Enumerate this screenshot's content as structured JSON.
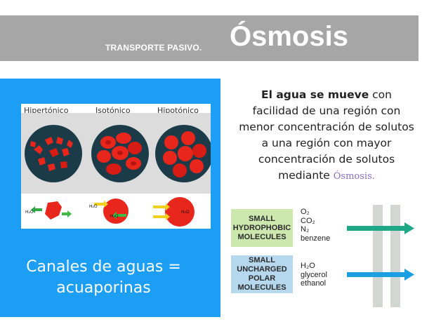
{
  "header": {
    "subtitle": "TRANSPORTE PASIVO.",
    "title": "Ósmosis"
  },
  "cells": {
    "labels": [
      "Hipertónico",
      "Isotónico",
      "Hipotónico"
    ],
    "h2o_label": "H₂O"
  },
  "aquaporins": {
    "line1": "Canales de aguas =",
    "line2": "acuaporinas"
  },
  "description": {
    "bold": "El agua se mueve",
    "rest": " con facilidad de una región con menor concentración de solutos a una región con mayor concentración de solutos mediante ",
    "term": "Ósmosis."
  },
  "membrane": {
    "box1": "SMALL HYDROPHOBIC MOLECULES",
    "list1": [
      "O₂",
      "CO₂",
      "N₂",
      "benzene"
    ],
    "box2": "SMALL UNCHARGED POLAR MOLECULES",
    "list2": [
      "H₂O",
      "glycerol",
      "ethanol"
    ]
  },
  "colors": {
    "header_bg": "#a6a6a6",
    "panel_blue": "#1b9ef3",
    "cell_red": "#e8261c",
    "green_arrow": "#1fa887",
    "blue_arrow": "#1aa0e0"
  }
}
